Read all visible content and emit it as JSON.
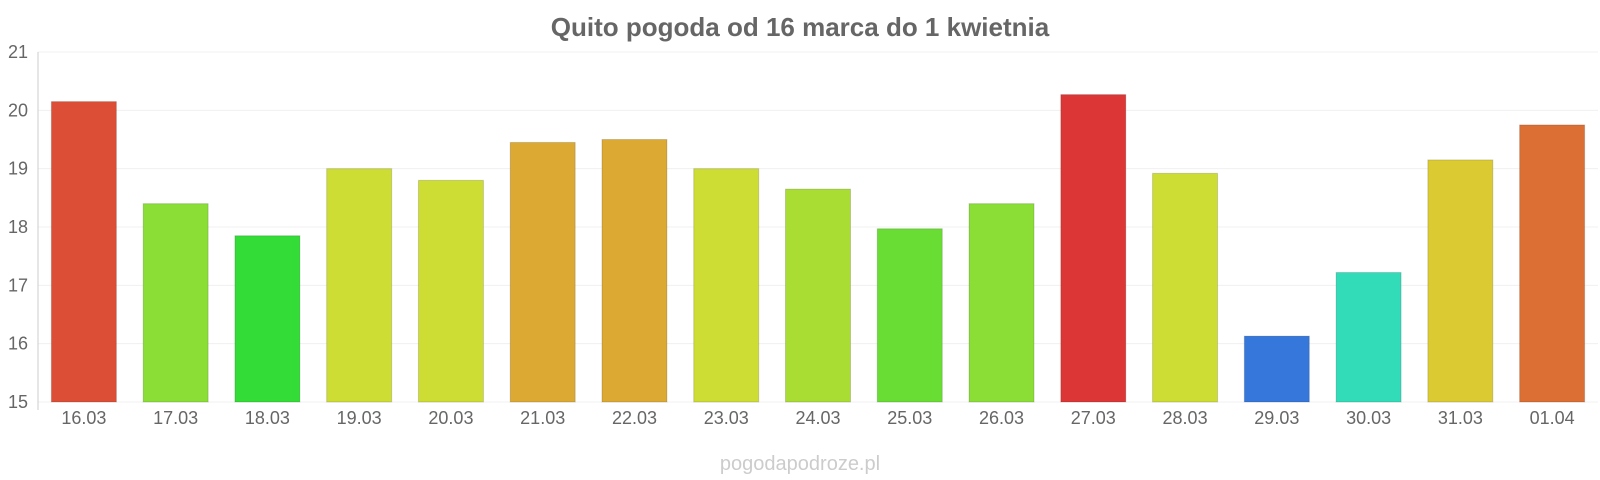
{
  "chart_data": {
    "type": "bar",
    "title": "Quito pogoda od 16 marca do 1 kwietnia",
    "categories": [
      "16.03",
      "17.03",
      "18.03",
      "19.03",
      "20.03",
      "21.03",
      "22.03",
      "23.03",
      "24.03",
      "25.03",
      "26.03",
      "27.03",
      "28.03",
      "29.03",
      "30.03",
      "31.03",
      "01.04"
    ],
    "values": [
      20.15,
      18.4,
      17.85,
      19.0,
      18.8,
      19.45,
      19.5,
      19.0,
      18.65,
      17.97,
      18.4,
      20.27,
      18.92,
      16.13,
      17.22,
      19.15,
      19.75
    ],
    "colors": [
      "#dc4f36",
      "#8ade36",
      "#33dc36",
      "#cddd33",
      "#cddd33",
      "#dcaa33",
      "#dcaa33",
      "#cddd33",
      "#a9dd33",
      "#69dd33",
      "#8ade36",
      "#dc3636",
      "#cddd33",
      "#3677dc",
      "#33dcb9",
      "#dcca33",
      "#dc6f33"
    ],
    "xlabel": "",
    "ylabel": "",
    "ylim": [
      15,
      21
    ],
    "yticks": [
      "15",
      "16",
      "17",
      "18",
      "19",
      "20",
      "21"
    ],
    "grid": true
  },
  "watermark": "pogodapodroze.pl"
}
